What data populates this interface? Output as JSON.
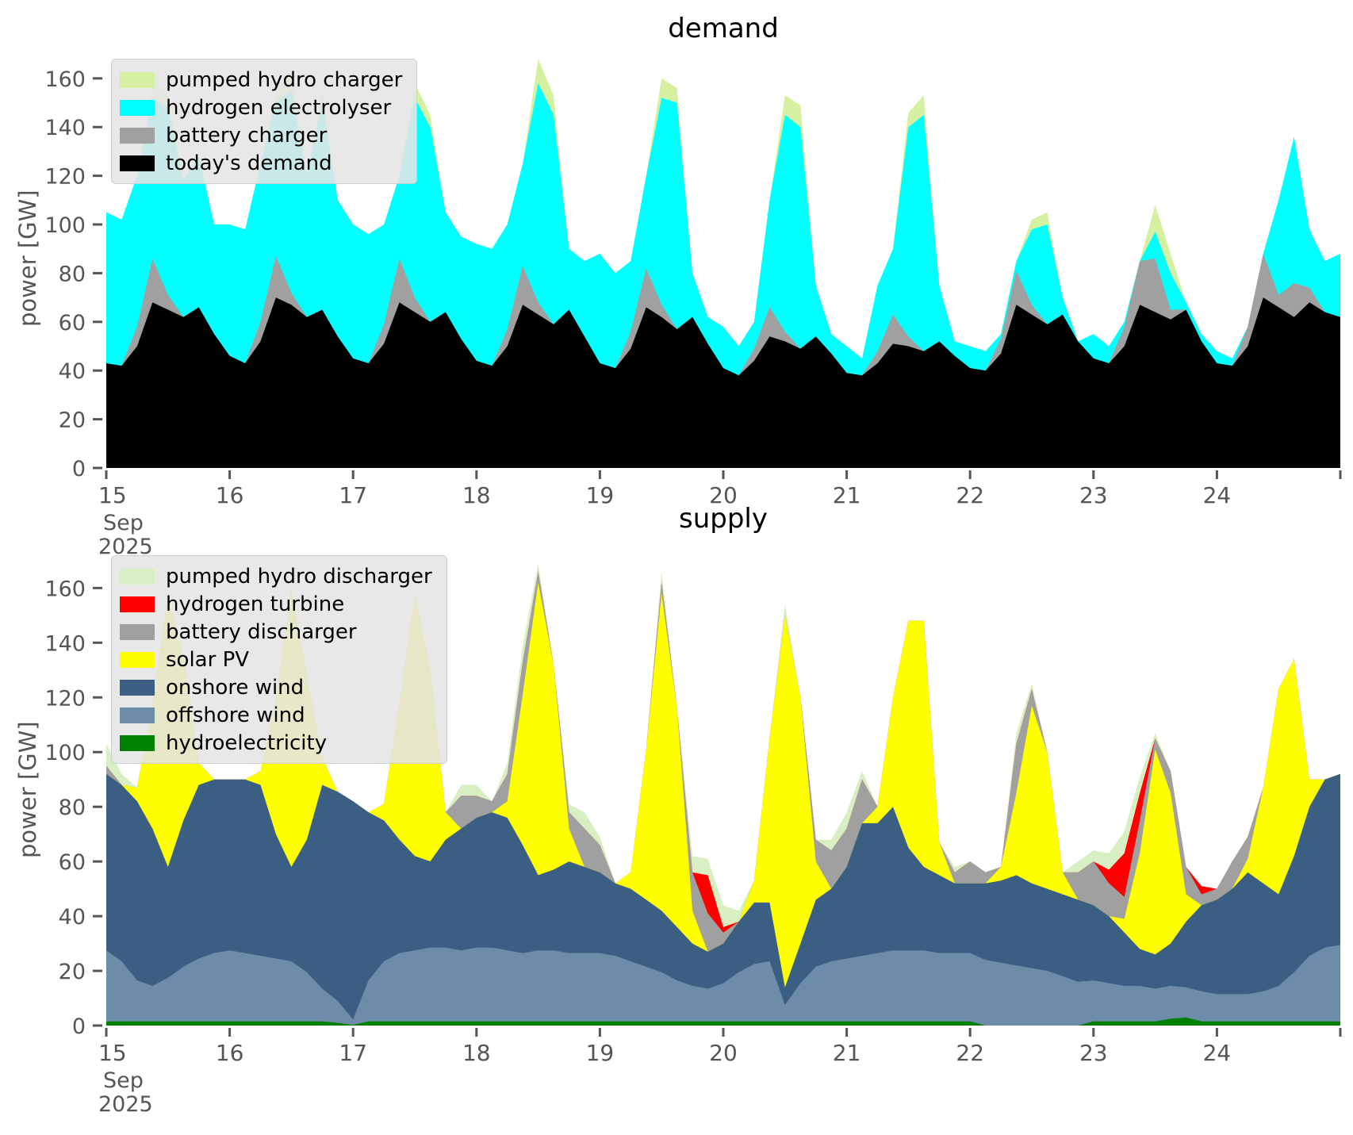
{
  "figure": {
    "background": "#ffffff",
    "tick_color": "#555555",
    "title_color": "#000000",
    "legend_bg": "#e5e5e5",
    "legend_border": "#cfcfcf"
  },
  "chart_data": [
    {
      "type": "area",
      "stacked": true,
      "title": "demand",
      "ylabel": "power [GW]",
      "ylim": [
        0,
        172
      ],
      "yticks": [
        0,
        20,
        40,
        60,
        80,
        100,
        120,
        140,
        160
      ],
      "x_hours_step": 3,
      "x_total_hours": 240,
      "x_axis": {
        "day_labels": [
          "15",
          "16",
          "17",
          "18",
          "19",
          "20",
          "21",
          "22",
          "23",
          "24"
        ],
        "month_label": "Sep",
        "year_label": "2025"
      },
      "legend_position": "upper-left",
      "series": [
        {
          "name": "today's demand",
          "color": "#000000",
          "values": [
            43,
            42,
            50,
            68,
            65,
            62,
            66,
            55,
            46,
            43,
            52,
            70,
            67,
            62,
            65,
            54,
            45,
            43,
            51,
            68,
            64,
            60,
            64,
            53,
            44,
            42,
            50,
            67,
            63,
            59,
            65,
            54,
            43,
            41,
            49,
            66,
            62,
            57,
            62,
            51,
            41,
            38,
            44,
            54,
            52,
            49,
            54,
            47,
            39,
            38,
            43,
            51,
            50,
            48,
            52,
            46,
            41,
            40,
            47,
            67,
            63,
            59,
            63,
            52,
            45,
            43,
            50,
            67,
            64,
            61,
            65,
            52,
            43,
            42,
            50,
            70,
            66,
            62,
            68,
            64,
            62
          ]
        },
        {
          "name": "battery charger",
          "color": "#a0a0a0",
          "values": [
            0,
            0,
            8,
            18,
            6,
            0,
            0,
            0,
            0,
            0,
            8,
            17,
            5,
            0,
            0,
            0,
            0,
            0,
            8,
            18,
            6,
            0,
            0,
            0,
            0,
            0,
            7,
            16,
            5,
            0,
            0,
            0,
            0,
            0,
            7,
            16,
            5,
            0,
            0,
            0,
            0,
            0,
            5,
            12,
            4,
            0,
            0,
            0,
            0,
            0,
            5,
            12,
            4,
            0,
            0,
            0,
            0,
            0,
            6,
            14,
            4,
            0,
            0,
            0,
            0,
            0,
            8,
            18,
            22,
            4,
            0,
            0,
            0,
            0,
            8,
            18,
            5,
            14,
            6,
            0,
            0
          ]
        },
        {
          "name": "hydrogen electrolyser",
          "color": "#00ffff",
          "values": [
            62,
            60,
            62,
            66,
            77,
            56,
            62,
            45,
            54,
            55,
            65,
            63,
            83,
            58,
            85,
            56,
            55,
            53,
            41,
            34,
            82,
            80,
            41,
            42,
            48,
            48,
            43,
            42,
            90,
            86,
            25,
            31,
            45,
            39,
            29,
            38,
            85,
            93,
            18,
            11,
            17,
            12,
            11,
            44,
            89,
            91,
            21,
            8,
            11,
            7,
            27,
            27,
            86,
            97,
            23,
            6,
            9,
            8,
            2,
            4,
            31,
            41,
            7,
            0,
            10,
            7,
            2,
            0,
            11,
            15,
            3,
            3,
            5,
            3,
            0,
            0,
            39,
            60,
            24,
            21,
            26
          ]
        },
        {
          "name": "pumped hydro charger",
          "color": "#d6f0a2",
          "values": [
            0,
            0,
            0,
            5,
            6,
            0,
            0,
            0,
            0,
            0,
            0,
            4,
            8,
            0,
            6,
            0,
            0,
            0,
            0,
            0,
            6,
            5,
            0,
            0,
            0,
            0,
            0,
            0,
            10,
            8,
            0,
            0,
            0,
            0,
            0,
            0,
            8,
            6,
            0,
            0,
            0,
            0,
            0,
            0,
            8,
            9,
            0,
            0,
            0,
            0,
            0,
            0,
            6,
            8,
            0,
            0,
            0,
            0,
            0,
            0,
            4,
            5,
            0,
            0,
            0,
            0,
            0,
            0,
            11,
            8,
            0,
            0,
            0,
            0,
            0,
            0,
            0,
            0,
            0,
            0,
            0
          ]
        }
      ]
    },
    {
      "type": "area",
      "stacked": true,
      "title": "supply",
      "ylabel": "power [GW]",
      "ylim": [
        0,
        172
      ],
      "yticks": [
        0,
        20,
        40,
        60,
        80,
        100,
        120,
        140,
        160
      ],
      "x_hours_step": 3,
      "x_total_hours": 240,
      "x_axis": {
        "day_labels": [
          "15",
          "16",
          "17",
          "18",
          "19",
          "20",
          "21",
          "22",
          "23",
          "24"
        ],
        "month_label": "Sep",
        "year_label": "2025"
      },
      "legend_position": "upper-left",
      "series": [
        {
          "name": "hydroelectricity",
          "color": "#008000",
          "values": [
            1.5,
            1.5,
            1.5,
            1.5,
            1.5,
            1.5,
            1.5,
            1.5,
            1.5,
            1.5,
            1.5,
            1.5,
            1.5,
            1.5,
            1.5,
            1.0,
            0.2,
            1.5,
            1.5,
            1.5,
            1.5,
            1.5,
            1.5,
            1.5,
            1.5,
            1.5,
            1.5,
            1.5,
            1.5,
            1.5,
            1.5,
            1.5,
            1.5,
            1.5,
            1.5,
            1.5,
            1.5,
            1.5,
            1.5,
            1.5,
            1.5,
            1.5,
            1.5,
            1.5,
            1.5,
            1.5,
            1.5,
            1.5,
            1.5,
            1.5,
            1.5,
            1.5,
            1.5,
            1.5,
            1.5,
            1.5,
            1.5,
            0,
            0,
            0,
            0,
            0,
            0,
            0,
            1.5,
            1.5,
            1.5,
            1.5,
            1.5,
            2.5,
            3,
            1.5,
            1.5,
            1.5,
            1.5,
            1.5,
            1.5,
            1.5,
            1.5,
            1.5,
            1.5
          ]
        },
        {
          "name": "offshore wind",
          "color": "#6c8caa",
          "values": [
            26,
            22,
            15,
            13,
            16,
            20,
            23,
            25,
            26,
            25,
            24,
            23,
            22,
            18,
            12,
            8,
            2,
            15,
            22,
            25,
            26,
            27,
            27,
            26,
            27,
            27,
            26,
            25,
            26,
            26,
            25,
            25,
            25,
            24,
            22,
            20,
            18,
            15,
            13,
            12,
            14,
            18,
            21,
            22,
            6,
            14,
            20,
            22,
            23,
            24,
            25,
            26,
            26,
            26,
            25,
            25,
            25,
            24,
            23,
            22,
            21,
            20,
            18,
            16,
            15,
            14,
            13,
            13,
            12,
            12,
            11,
            11,
            10,
            10,
            10,
            11,
            13,
            18,
            24,
            27,
            28
          ]
        },
        {
          "name": "onshore wind",
          "color": "#3a5f82",
          "values": [
            64.5,
            64.5,
            65.5,
            57.5,
            40.5,
            53.5,
            63.5,
            63.5,
            62.5,
            63.5,
            62.5,
            45.5,
            34.5,
            48.5,
            74.5,
            76.5,
            79.8,
            61.5,
            51.5,
            41.5,
            34.5,
            31.5,
            39.5,
            44.5,
            47.5,
            49.5,
            48.5,
            39.5,
            27.5,
            29.5,
            33.5,
            31.5,
            29.5,
            26.5,
            26.5,
            24.5,
            22.5,
            19.5,
            15.5,
            13.5,
            14.5,
            18.5,
            22.5,
            21.5,
            6.5,
            14.5,
            24.5,
            26.5,
            33.5,
            48.5,
            47.5,
            52.5,
            37.5,
            30.5,
            28.5,
            25.5,
            25.5,
            28,
            30,
            33,
            31,
            30,
            30,
            30,
            27.5,
            24.5,
            19.5,
            13.5,
            12.5,
            15.5,
            24,
            31.5,
            34.5,
            38.5,
            44.5,
            39.5,
            33.5,
            42.5,
            54.5,
            61.5,
            62.5
          ]
        },
        {
          "name": "solar PV",
          "color": "#ffff00",
          "values": [
            0,
            0,
            5,
            45,
            100,
            60,
            8,
            0,
            0,
            0,
            5,
            50,
            102,
            60,
            10,
            0,
            0,
            0,
            6,
            50,
            96,
            70,
            10,
            0,
            0,
            0,
            6,
            55,
            107,
            75,
            12,
            0,
            0,
            0,
            6,
            55,
            116,
            80,
            12,
            0,
            0,
            0,
            8,
            60,
            136,
            90,
            14,
            0,
            0,
            0,
            6,
            40,
            83,
            90,
            12,
            0,
            0,
            0,
            5,
            30,
            65,
            50,
            8,
            0,
            0,
            0,
            5,
            35,
            75,
            55,
            10,
            0,
            0,
            0,
            5,
            35,
            75,
            72,
            10,
            0,
            0
          ]
        },
        {
          "name": "battery discharger",
          "color": "#a0a0a0",
          "values": [
            3,
            0,
            0,
            0,
            0,
            0,
            0,
            0,
            0,
            0,
            0,
            0,
            0,
            0,
            0,
            0,
            0,
            0,
            0,
            0,
            0,
            0,
            0,
            12,
            8,
            4,
            10,
            12,
            4,
            0,
            6,
            14,
            10,
            0,
            0,
            0,
            4,
            0,
            14,
            14,
            4,
            0,
            0,
            0,
            0,
            0,
            8,
            14,
            14,
            16,
            0,
            0,
            0,
            0,
            0,
            4,
            8,
            4,
            0,
            18,
            6,
            0,
            0,
            10,
            16,
            12,
            8,
            12,
            4,
            8,
            10,
            4,
            4,
            10,
            8,
            0,
            0,
            0,
            0,
            0,
            0
          ]
        },
        {
          "name": "hydrogen turbine",
          "color": "#ff0000",
          "values": [
            0,
            0,
            0,
            0,
            0,
            0,
            0,
            0,
            0,
            0,
            0,
            0,
            0,
            0,
            0,
            0,
            0,
            0,
            0,
            0,
            0,
            0,
            0,
            0,
            0,
            0,
            0,
            0,
            0,
            0,
            0,
            0,
            0,
            0,
            0,
            0,
            0,
            0,
            0,
            14,
            2,
            0,
            0,
            0,
            0,
            0,
            0,
            0,
            0,
            0,
            0,
            0,
            0,
            0,
            0,
            0,
            0,
            0,
            0,
            0,
            0,
            0,
            0,
            0,
            0,
            5,
            16,
            10,
            0,
            0,
            0,
            3,
            0,
            0,
            0,
            0,
            0,
            0,
            0,
            0,
            0
          ]
        },
        {
          "name": "pumped hydro discharger",
          "color": "#d8efc3",
          "values": [
            8,
            4,
            0,
            0,
            0,
            0,
            0,
            0,
            0,
            0,
            0,
            0,
            0,
            0,
            0,
            0,
            0,
            0,
            0,
            0,
            0,
            0,
            0,
            4,
            4,
            0,
            4,
            6,
            3,
            0,
            3,
            6,
            3,
            0,
            0,
            0,
            4,
            0,
            6,
            6,
            8,
            4,
            0,
            0,
            4,
            0,
            0,
            4,
            6,
            3,
            0,
            0,
            0,
            0,
            0,
            2,
            0,
            0,
            0,
            4,
            2,
            0,
            0,
            4,
            4,
            6,
            8,
            6,
            2,
            0,
            0,
            0,
            0,
            0,
            0,
            0,
            0,
            0,
            0,
            0,
            0
          ]
        }
      ]
    }
  ]
}
